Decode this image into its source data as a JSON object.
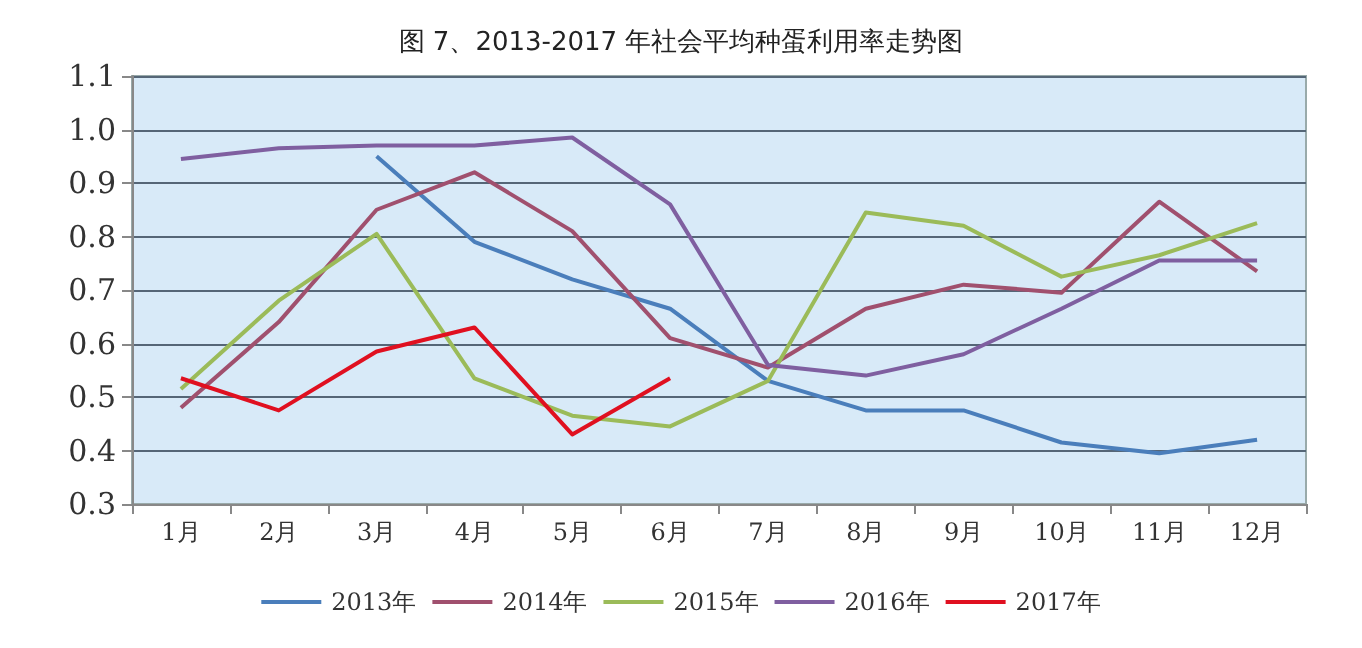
{
  "chart_data": {
    "type": "line",
    "title": "图 7、2013-2017 年社会平均种蛋利用率走势图",
    "categories": [
      "1月",
      "2月",
      "3月",
      "4月",
      "5月",
      "6月",
      "7月",
      "8月",
      "9月",
      "10月",
      "11月",
      "12月"
    ],
    "series": [
      {
        "name": "2013年",
        "color": "#4a7ebb",
        "values": [
          null,
          null,
          0.95,
          0.79,
          0.72,
          0.665,
          0.53,
          0.475,
          0.475,
          0.415,
          0.395,
          0.42
        ]
      },
      {
        "name": "2014年",
        "color": "#a0506e",
        "values": [
          0.48,
          0.64,
          0.85,
          0.92,
          0.81,
          0.61,
          0.555,
          0.665,
          0.71,
          0.695,
          0.865,
          0.735
        ]
      },
      {
        "name": "2015年",
        "color": "#9bbb59",
        "values": [
          0.515,
          0.68,
          0.805,
          0.535,
          0.465,
          0.445,
          0.53,
          0.845,
          0.82,
          0.725,
          0.765,
          0.825
        ]
      },
      {
        "name": "2016年",
        "color": "#7f5fa0",
        "values": [
          0.945,
          0.965,
          0.97,
          0.97,
          0.985,
          0.86,
          0.56,
          0.54,
          0.58,
          0.665,
          0.755,
          0.755
        ]
      },
      {
        "name": "2017年",
        "color": "#e01020",
        "values": [
          0.535,
          0.475,
          0.585,
          0.63,
          0.43,
          0.535,
          null,
          null,
          null,
          null,
          null,
          null
        ]
      }
    ],
    "ylim": [
      0.3,
      1.1
    ],
    "yticks": [
      {
        "value": 0.3,
        "label": "0.3"
      },
      {
        "value": 0.4,
        "label": "0.4"
      },
      {
        "value": 0.5,
        "label": "0.5"
      },
      {
        "value": 0.6,
        "label": "0.6"
      },
      {
        "value": 0.7,
        "label": "0.7"
      },
      {
        "value": 0.8,
        "label": "0.8"
      },
      {
        "value": 0.9,
        "label": "0.9"
      },
      {
        "value": 1.0,
        "label": "1.0"
      },
      {
        "value": 1.1,
        "label": "1.1"
      }
    ],
    "grid": "y",
    "legend": "bottom",
    "marker": "none",
    "line_style": "solid"
  }
}
